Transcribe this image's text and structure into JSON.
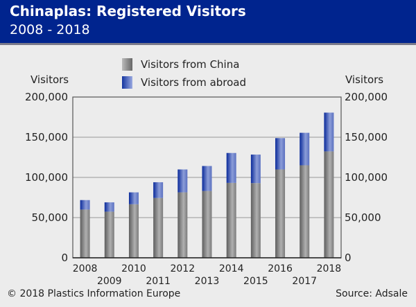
{
  "header": {
    "title": "Chinaplas: Registered Visitors",
    "subtitle": "2008 - 2018"
  },
  "footer": {
    "copyright": "© 2018 Plastics Information Europe",
    "source": "Source: Adsale"
  },
  "colors": {
    "header": "#00248e",
    "china": "#8a8a8a",
    "abroad": "#2b48b0",
    "background": "#ececec"
  },
  "chart_data": {
    "type": "bar",
    "stacked": true,
    "title": "Chinaplas: Registered Visitors",
    "subtitle": "2008 - 2018",
    "ylabel_left": "Visitors",
    "ylabel_right": "Visitors",
    "ylim": [
      0,
      200000
    ],
    "yticks": [
      "0",
      "50,000",
      "100,000",
      "150,000",
      "200,000"
    ],
    "ytick_values": [
      0,
      50000,
      100000,
      150000,
      200000
    ],
    "categories": [
      "2008",
      "2009",
      "2010",
      "2011",
      "2012",
      "2013",
      "2014",
      "2015",
      "2016",
      "2017",
      "2018"
    ],
    "series": [
      {
        "name": "Visitors from China",
        "values": [
          60000,
          57400,
          66600,
          74400,
          81400,
          83100,
          93200,
          92900,
          109900,
          115100,
          132400
        ]
      },
      {
        "name": "Visitors from abroad",
        "values": [
          11800,
          11600,
          14800,
          19600,
          28500,
          31100,
          37200,
          35500,
          39000,
          40400,
          48200
        ]
      }
    ],
    "legend": "top-center",
    "grid": true
  }
}
